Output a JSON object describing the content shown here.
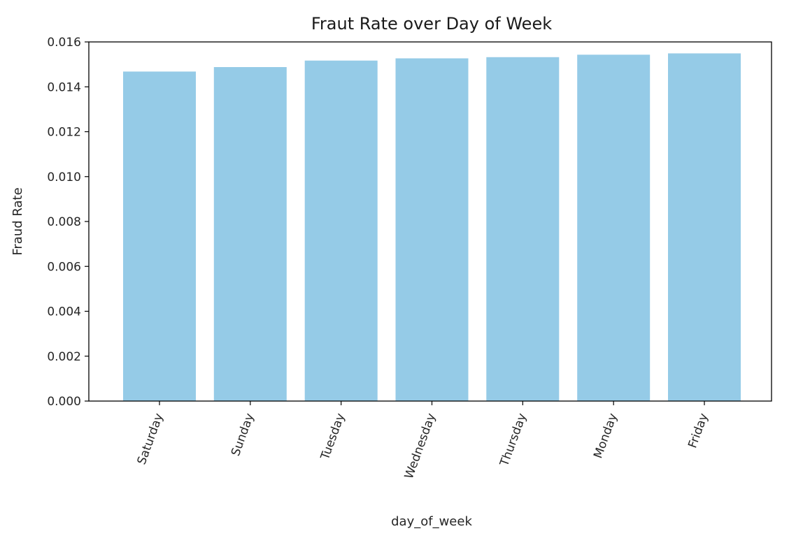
{
  "chart_data": {
    "type": "bar",
    "title": "Fraut Rate over Day of Week",
    "xlabel": "day_of_week",
    "ylabel": "Fraud Rate",
    "categories": [
      "Saturday",
      "Sunday",
      "Tuesday",
      "Wednesday",
      "Thursday",
      "Monday",
      "Friday"
    ],
    "values": [
      0.01468,
      0.01488,
      0.01517,
      0.01527,
      0.01532,
      0.01543,
      0.01549
    ],
    "ylim": [
      0,
      0.016
    ],
    "yticks": [
      "0.000",
      "0.002",
      "0.004",
      "0.006",
      "0.008",
      "0.010",
      "0.012",
      "0.014",
      "0.016"
    ],
    "bar_color": "#95cbe7",
    "grid": false,
    "x_tick_rotation": "70 degrees"
  }
}
